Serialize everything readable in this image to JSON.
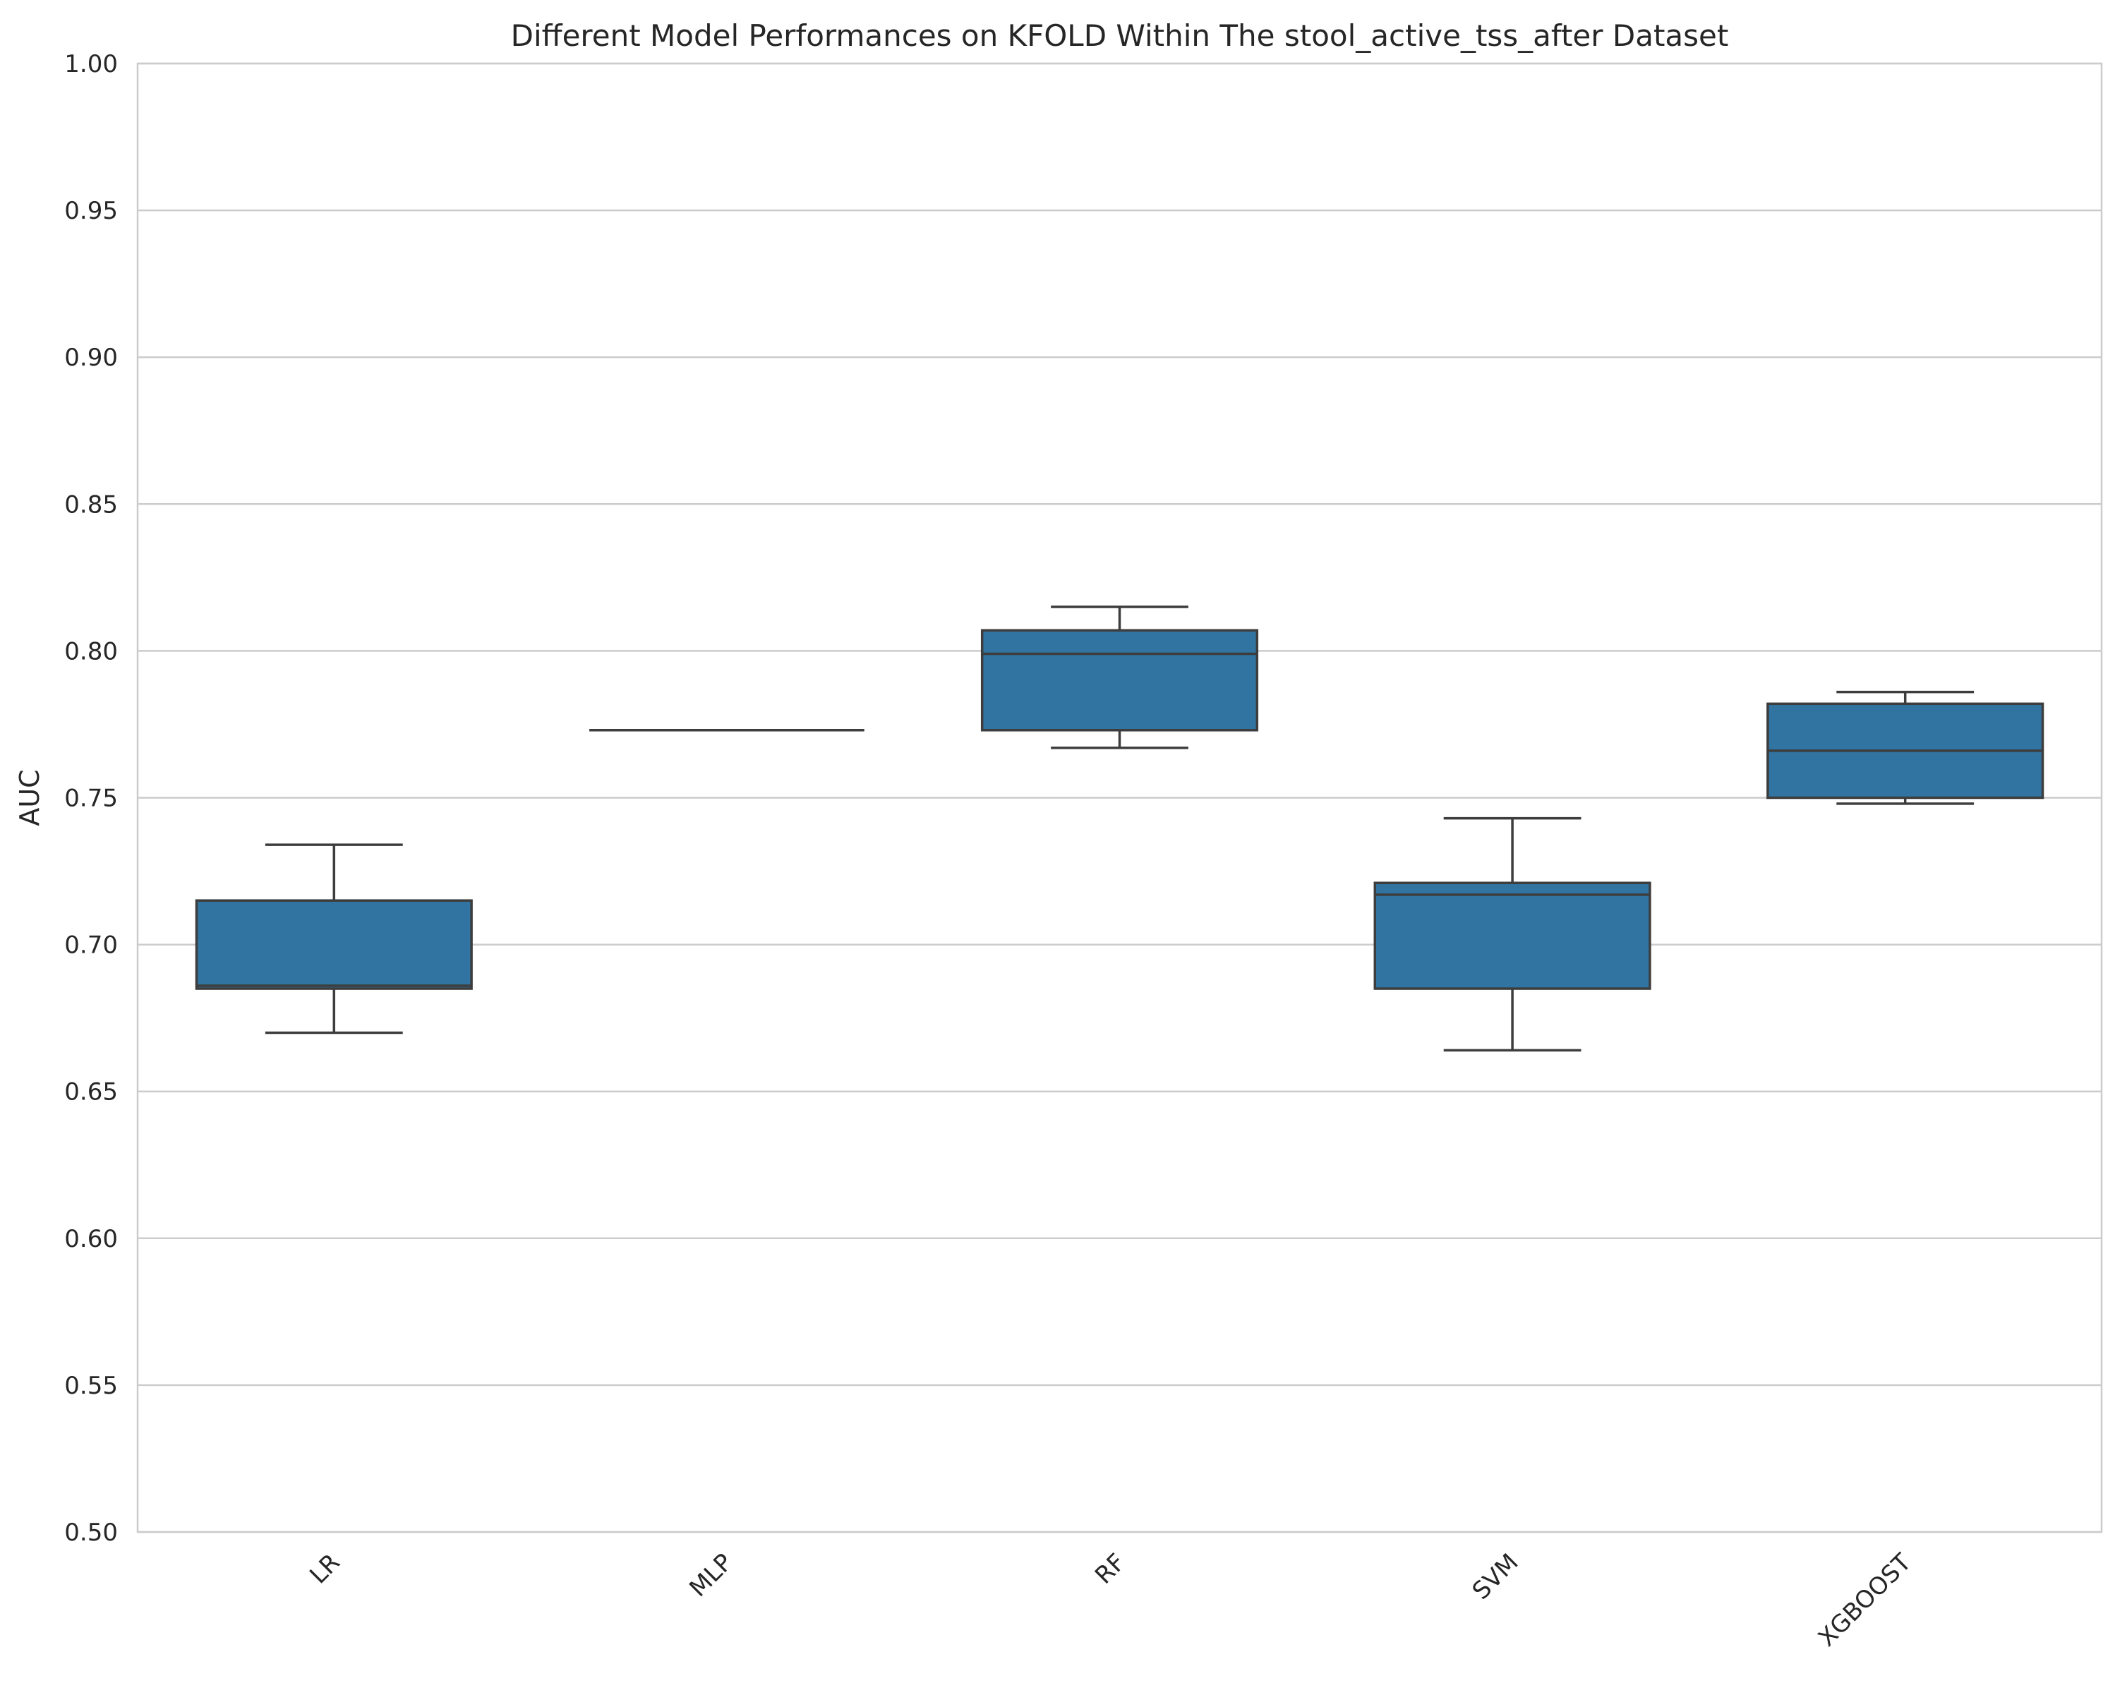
{
  "chart_data": {
    "type": "box",
    "title": "Different Model Performances on KFOLD Within The stool_active_tss_after Dataset",
    "xlabel": "",
    "ylabel": "AUC",
    "ylim": [
      0.5,
      1.0
    ],
    "yticks": [
      "0.50",
      "0.55",
      "0.60",
      "0.65",
      "0.70",
      "0.75",
      "0.80",
      "0.85",
      "0.90",
      "0.95",
      "1.00"
    ],
    "grid": true,
    "grid_axis": "y",
    "box_color": "#3274a1",
    "edge_color": "#3d3d3d",
    "grid_color": "#cccccc",
    "categories": [
      "LR",
      "MLP",
      "RF",
      "SVM",
      "XGBOOST"
    ],
    "boxes": [
      {
        "label": "LR",
        "whislo": 0.67,
        "q1": 0.685,
        "med": 0.686,
        "q3": 0.715,
        "whishi": 0.734
      },
      {
        "label": "MLP",
        "whislo": 0.773,
        "q1": 0.773,
        "med": 0.773,
        "q3": 0.773,
        "whishi": 0.773
      },
      {
        "label": "RF",
        "whislo": 0.767,
        "q1": 0.773,
        "med": 0.799,
        "q3": 0.807,
        "whishi": 0.815
      },
      {
        "label": "SVM",
        "whislo": 0.664,
        "q1": 0.685,
        "med": 0.717,
        "q3": 0.721,
        "whishi": 0.743
      },
      {
        "label": "XGBOOST",
        "whislo": 0.748,
        "q1": 0.75,
        "med": 0.766,
        "q3": 0.782,
        "whishi": 0.786
      }
    ]
  }
}
